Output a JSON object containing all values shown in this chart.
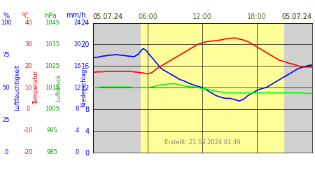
{
  "title_left": "05.07.24",
  "title_right": "05.07.24",
  "xlabel_times": [
    "06:00",
    "12:00",
    "18:00"
  ],
  "xlabel_time_positions": [
    6,
    12,
    18
  ],
  "ylabel_left1_label": "Luftfeuchtigkeit",
  "ylabel_left2_label": "Temperatur",
  "ylabel_left3_label": "Luftdruck",
  "ylabel_right_label": "Niederschlag",
  "axis_labels_top": [
    "%",
    "°C",
    "hPa",
    "mm/h"
  ],
  "axis_labels_top_colors": [
    "blue",
    "red",
    "green",
    "#3399ff"
  ],
  "y_ticks_pct": [
    0,
    25,
    50,
    75,
    100
  ],
  "y_ticks_temp": [
    -20,
    -10,
    0,
    10,
    20,
    30,
    40
  ],
  "y_ticks_hpa": [
    985,
    995,
    1005,
    1015,
    1025,
    1035,
    1045
  ],
  "y_ticks_mmh": [
    0,
    4,
    8,
    12,
    16,
    20,
    24
  ],
  "ylim_mmh": [
    0,
    24
  ],
  "background_gray": "#d0d0d0",
  "background_yellow": "#ffff99",
  "background_plot": "#e8e8e8",
  "grid_color": "#000000",
  "footer_text": "Erstellt: 21.09.2024 01:49",
  "footer_color": "#808080",
  "day_start": 5.25,
  "day_end": 21.0,
  "blue_line": {
    "x": [
      0,
      0.5,
      1,
      1.5,
      2,
      2.5,
      3,
      3.5,
      4,
      4.5,
      5,
      5.25,
      5.5,
      5.75,
      6,
      6.5,
      7,
      7.5,
      8,
      8.5,
      9,
      9.5,
      10,
      10.5,
      11,
      11.5,
      12,
      12.5,
      13,
      13.5,
      14,
      14.5,
      15,
      15.5,
      16,
      16.5,
      17,
      17.5,
      18,
      18.5,
      19,
      19.5,
      20,
      20.5,
      21,
      21.5,
      22,
      22.5,
      23,
      23.5,
      24
    ],
    "y": [
      17.5,
      17.6,
      17.8,
      17.9,
      18.0,
      18.1,
      18.0,
      17.9,
      17.8,
      17.7,
      18.2,
      18.8,
      19.2,
      19.0,
      18.5,
      17.5,
      16.5,
      15.5,
      15.0,
      14.5,
      14.0,
      13.5,
      13.2,
      12.8,
      12.5,
      12.2,
      12.0,
      11.5,
      11.0,
      10.5,
      10.2,
      10.0,
      10.0,
      9.8,
      9.5,
      9.8,
      10.5,
      11.0,
      11.5,
      11.8,
      12.0,
      12.5,
      13.0,
      13.5,
      14.0,
      14.5,
      15.0,
      15.5,
      15.8,
      16.0,
      16.2
    ]
  },
  "red_line": {
    "x": [
      0,
      0.5,
      1,
      1.5,
      2,
      2.5,
      3,
      3.5,
      4,
      4.5,
      5,
      5.5,
      6,
      6.5,
      7,
      7.5,
      8,
      8.5,
      9,
      9.5,
      10,
      10.5,
      11,
      11.5,
      12,
      12.5,
      13,
      13.5,
      14,
      14.5,
      15,
      15.5,
      16,
      16.5,
      17,
      17.5,
      18,
      18.5,
      19,
      19.5,
      20,
      20.5,
      21,
      21.5,
      22,
      22.5,
      23,
      23.5,
      24
    ],
    "y": [
      14.8,
      14.9,
      14.9,
      15.0,
      15.0,
      15.0,
      15.0,
      15.0,
      15.0,
      14.9,
      14.8,
      14.7,
      14.5,
      14.8,
      15.5,
      16.0,
      16.5,
      17.0,
      17.5,
      18.0,
      18.5,
      19.0,
      19.5,
      20.0,
      20.3,
      20.5,
      20.6,
      20.7,
      20.8,
      21.0,
      21.1,
      21.2,
      21.0,
      20.8,
      20.5,
      20.0,
      19.5,
      19.0,
      18.5,
      18.0,
      17.5,
      17.0,
      16.8,
      16.5,
      16.3,
      16.0,
      15.8,
      15.8,
      15.8
    ]
  },
  "green_line": {
    "x": [
      0,
      0.5,
      1,
      1.5,
      2,
      2.5,
      3,
      3.5,
      4,
      4.5,
      5,
      5.5,
      6,
      6.5,
      7,
      7.5,
      8,
      8.5,
      9,
      9.5,
      10,
      10.5,
      11,
      11.5,
      12,
      12.5,
      13,
      13.5,
      14,
      14.5,
      15,
      15.5,
      16,
      16.5,
      17,
      17.5,
      18,
      18.5,
      19,
      19.5,
      20,
      20.5,
      21,
      21.5,
      22,
      22.5,
      23,
      23.5,
      24
    ],
    "y": [
      12.0,
      12.0,
      12.1,
      12.1,
      12.1,
      12.1,
      12.1,
      12.1,
      12.1,
      12.0,
      12.0,
      12.0,
      12.0,
      12.1,
      12.3,
      12.5,
      12.6,
      12.7,
      12.7,
      12.5,
      12.3,
      12.2,
      12.1,
      12.0,
      11.8,
      11.7,
      11.5,
      11.3,
      11.2,
      11.0,
      11.0,
      11.0,
      11.0,
      11.0,
      11.0,
      11.0,
      11.0,
      11.0,
      11.0,
      11.0,
      11.0,
      11.0,
      11.0,
      11.0,
      11.0,
      11.0,
      11.0,
      10.9,
      10.9
    ]
  }
}
